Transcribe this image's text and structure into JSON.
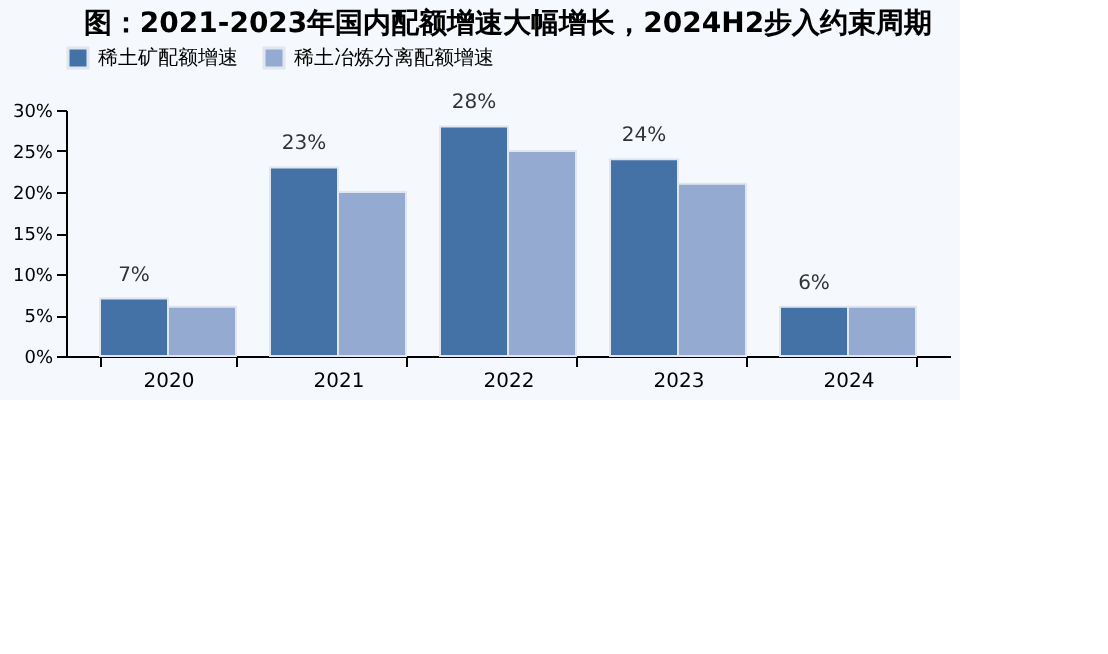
{
  "chart_data": {
    "type": "bar",
    "title": "图：2021-2023年国内配额增速大幅增长，2024H2步入约束周期",
    "categories": [
      "2020",
      "2021",
      "2022",
      "2023",
      "2024"
    ],
    "series": [
      {
        "name": "稀土矿配额增速",
        "color": "#4472a6",
        "values": [
          7,
          23,
          28,
          24,
          6
        ],
        "value_labels": [
          "7%",
          "23%",
          "28%",
          "24%",
          "6%"
        ]
      },
      {
        "name": "稀土冶炼分离配额增速",
        "color": "#95aad1",
        "values": [
          6,
          20,
          25,
          21,
          6
        ]
      }
    ],
    "ylim": [
      0,
      30
    ],
    "yticks": [
      {
        "value": 0,
        "label": "0%"
      },
      {
        "value": 5,
        "label": "5%"
      },
      {
        "value": 10,
        "label": "10%"
      },
      {
        "value": 15,
        "label": "15%"
      },
      {
        "value": 20,
        "label": "20%"
      },
      {
        "value": 25,
        "label": "25%"
      },
      {
        "value": 30,
        "label": "30%"
      }
    ],
    "grid": false,
    "legend": "top"
  }
}
